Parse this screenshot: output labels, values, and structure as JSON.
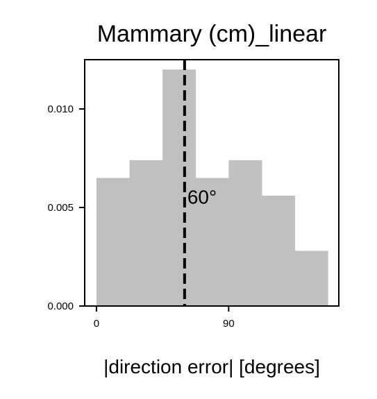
{
  "chart_data": {
    "type": "bar",
    "title": "Mammary (cm)_linear",
    "xlabel": "|direction error| [degrees]",
    "ylabel": "",
    "bin_edges": [
      0,
      22.5,
      45,
      67.5,
      90,
      112.5,
      135,
      157.5
    ],
    "values": [
      0.0065,
      0.0074,
      0.012,
      0.0065,
      0.0074,
      0.0056,
      0.0028
    ],
    "xlim": [
      -8,
      165
    ],
    "ylim": [
      0,
      0.0125
    ],
    "xticks": [
      0,
      90
    ],
    "xtick_labels": [
      "0",
      "90"
    ],
    "yticks": [
      0,
      0.005,
      0.01
    ],
    "ytick_labels": [
      "0.000",
      "0.005",
      "0.010"
    ],
    "vline": {
      "x": 60,
      "label": "60°",
      "style": "dashed"
    },
    "bar_color": "#c0c0c0",
    "line_color": "#000000",
    "grid": false
  }
}
